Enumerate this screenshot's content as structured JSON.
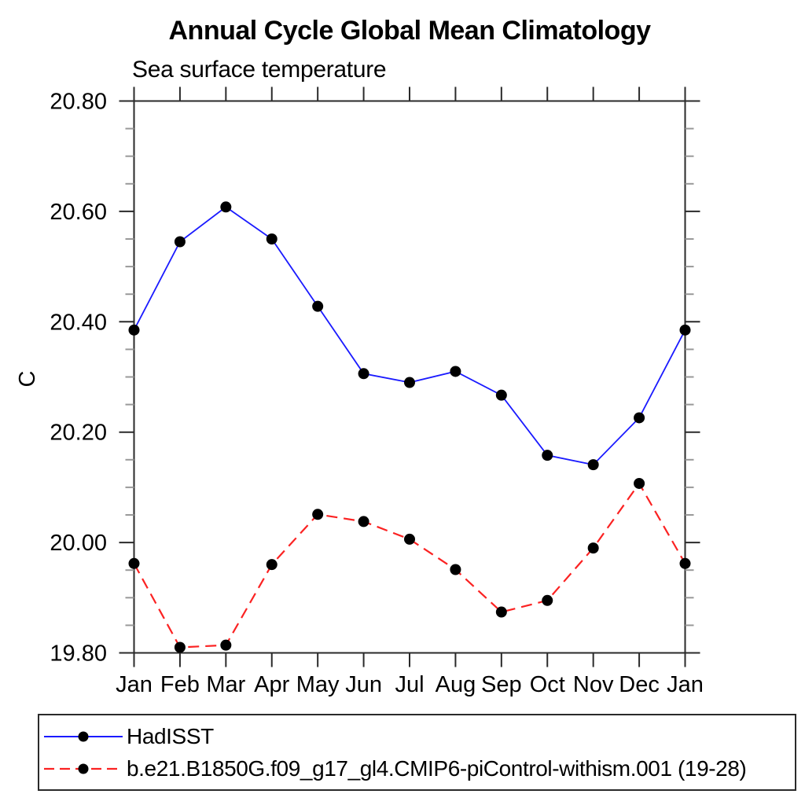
{
  "title": "Annual Cycle Global Mean Climatology",
  "subtitle": "Sea surface temperature",
  "chart_data": {
    "type": "line",
    "title": "Annual Cycle Global Mean Climatology",
    "subtitle": "Sea surface temperature",
    "ylabel": "C",
    "xlabel": "",
    "x_categories": [
      "Jan",
      "Feb",
      "Mar",
      "Apr",
      "May",
      "Jun",
      "Jul",
      "Aug",
      "Sep",
      "Oct",
      "Nov",
      "Dec",
      "Jan"
    ],
    "ylim": [
      19.8,
      20.8
    ],
    "ytick_labels": [
      "19.80",
      "20.00",
      "20.20",
      "20.40",
      "20.60",
      "20.80"
    ],
    "ytick_major_interval": 0.2,
    "ytick_minor_interval": 0.05,
    "grid": false,
    "legend_position": "bottom",
    "frame_color": "#2a2a2a",
    "minor_tick_color": "#999999",
    "marker_color": "#000000",
    "series": [
      {
        "name": "HadISST",
        "color": "#1a1aff",
        "style": "solid",
        "marker": "circle",
        "values": [
          20.385,
          20.545,
          20.608,
          20.55,
          20.428,
          20.306,
          20.29,
          20.31,
          20.267,
          20.158,
          20.141,
          20.226,
          20.385
        ]
      },
      {
        "name": "b.e21.B1850G.f09_g17_gl4.CMIP6-piControl-withism.001 (19-28)",
        "color": "#fb2222",
        "style": "dashed",
        "marker": "circle",
        "values": [
          19.962,
          19.81,
          19.814,
          19.96,
          20.051,
          20.038,
          20.006,
          19.951,
          19.874,
          19.895,
          19.99,
          20.107,
          19.962
        ]
      }
    ]
  }
}
